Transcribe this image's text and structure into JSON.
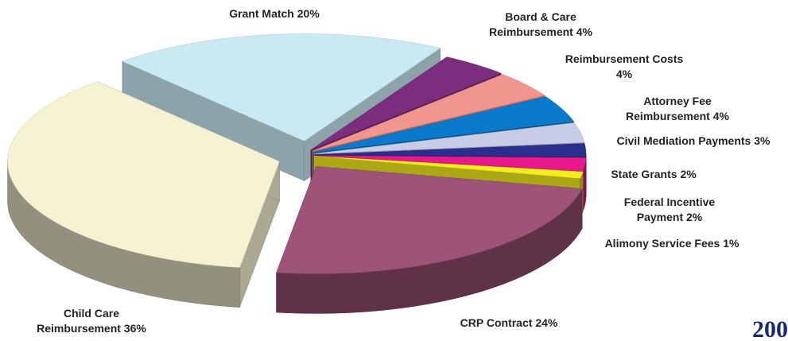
{
  "chart_data": {
    "type": "pie",
    "categories": [
      "Grant Match",
      "Board & Care Reimbursement",
      "Reimbursement Costs",
      "Attorney Fee Reimbursement",
      "Civil Mediation Payments",
      "State Grants",
      "Federal Incentive Payment",
      "Alimony Service Fees",
      "CRP Contract",
      "Child Care Reimbursement"
    ],
    "values": [
      20,
      4,
      4,
      4,
      3,
      2,
      2,
      1,
      24,
      36
    ],
    "value_labels": [
      "20%",
      "4%",
      "4%",
      "4%",
      "3%",
      "2%",
      "2%",
      "1%",
      "24%",
      "36%"
    ],
    "colors": [
      "#c9e9f3",
      "#7b2d7e",
      "#f0968f",
      "#0a7acc",
      "#c8cce6",
      "#2a2f8f",
      "#e8198c",
      "#f5ee1e",
      "#9e5478",
      "#f5f2d2"
    ],
    "annotation": "200"
  }
}
